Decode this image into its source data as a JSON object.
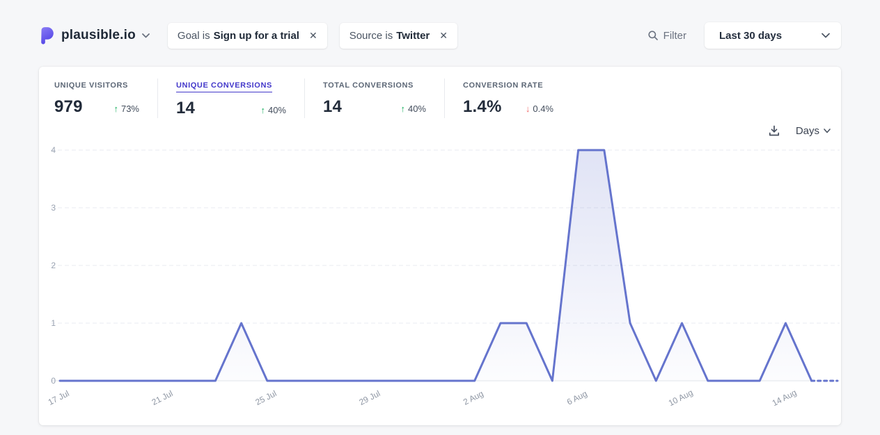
{
  "header": {
    "site": "plausible.io",
    "filters": [
      {
        "prefix": "Goal is",
        "value": "Sign up for a trial"
      },
      {
        "prefix": "Source is",
        "value": "Twitter"
      }
    ],
    "filter_button": "Filter",
    "date_range": "Last 30 days"
  },
  "icons": {
    "close": "✕"
  },
  "stats": [
    {
      "label": "UNIQUE VISITORS",
      "value": "979",
      "arrow": "↑",
      "change": "73%",
      "direction": "up",
      "selected": false
    },
    {
      "label": "UNIQUE CONVERSIONS",
      "value": "14",
      "arrow": "↑",
      "change": "40%",
      "direction": "up",
      "selected": true
    },
    {
      "label": "TOTAL CONVERSIONS",
      "value": "14",
      "arrow": "↑",
      "change": "40%",
      "direction": "up",
      "selected": false
    },
    {
      "label": "CONVERSION RATE",
      "value": "1.4%",
      "arrow": "↓",
      "change": "0.4%",
      "direction": "down",
      "selected": false
    }
  ],
  "chart_controls": {
    "interval": "Days"
  },
  "chart_data": {
    "type": "line",
    "title": "Unique conversions per day (Last 30 days)",
    "x": [
      "17 Jul",
      "18 Jul",
      "19 Jul",
      "20 Jul",
      "21 Jul",
      "22 Jul",
      "23 Jul",
      "24 Jul",
      "25 Jul",
      "26 Jul",
      "27 Jul",
      "28 Jul",
      "29 Jul",
      "30 Jul",
      "31 Jul",
      "1 Aug",
      "2 Aug",
      "3 Aug",
      "4 Aug",
      "5 Aug",
      "6 Aug",
      "7 Aug",
      "8 Aug",
      "9 Aug",
      "10 Aug",
      "11 Aug",
      "12 Aug",
      "13 Aug",
      "14 Aug",
      "15 Aug",
      "16 Aug"
    ],
    "values": [
      0,
      0,
      0,
      0,
      0,
      0,
      0,
      1,
      0,
      0,
      0,
      0,
      0,
      0,
      0,
      0,
      0,
      1,
      1,
      0,
      4,
      4,
      1,
      0,
      1,
      0,
      0,
      0,
      1,
      0,
      0
    ],
    "solid_points": 30,
    "x_ticks": [
      {
        "i": 0,
        "label": "17 Jul"
      },
      {
        "i": 4,
        "label": "21 Jul"
      },
      {
        "i": 8,
        "label": "25 Jul"
      },
      {
        "i": 12,
        "label": "29 Jul"
      },
      {
        "i": 16,
        "label": "2 Aug"
      },
      {
        "i": 20,
        "label": "6 Aug"
      },
      {
        "i": 24,
        "label": "10 Aug"
      },
      {
        "i": 28,
        "label": "14 Aug"
      }
    ],
    "y_ticks": [
      0,
      1,
      2,
      3,
      4
    ],
    "ylim": [
      0,
      4
    ],
    "grid": "horizontal-dashed",
    "legend": "none",
    "line_color": "#6574cd",
    "fill_color": "rgba(101,116,205,0.18)"
  }
}
